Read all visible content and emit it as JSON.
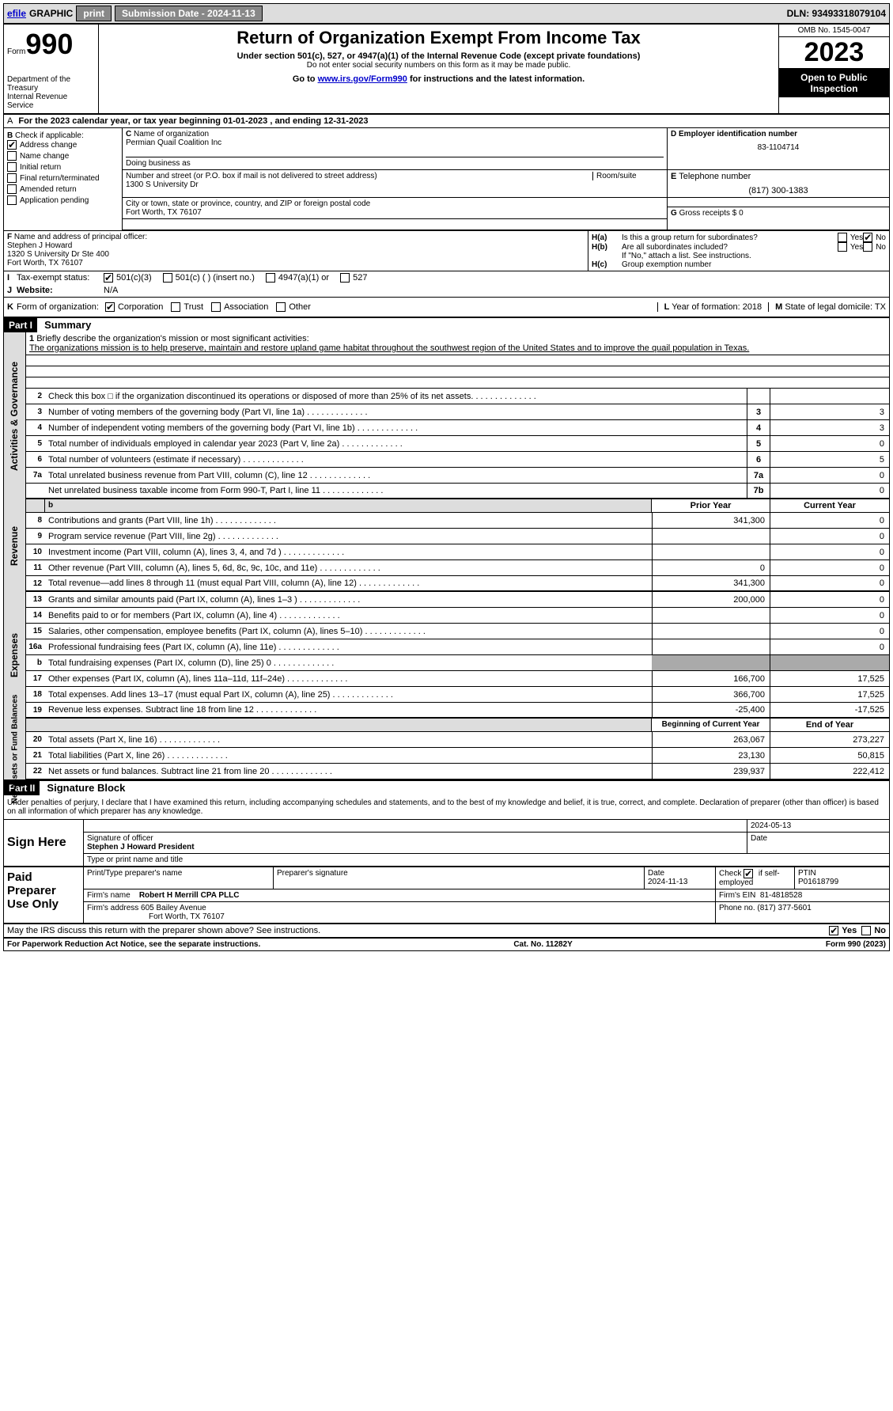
{
  "topbar": {
    "efile_label": "efile",
    "graphic_label": "GRAPHIC",
    "print_label": "print",
    "submission_label": "Submission Date - 2024-11-13",
    "dln_label": "DLN: 93493318079104"
  },
  "header": {
    "form_label": "Form",
    "form_number": "990",
    "title": "Return of Organization Exempt From Income Tax",
    "subtitle": "Under section 501(c), 527, or 4947(a)(1) of the Internal Revenue Code (except private foundations)",
    "warning": "Do not enter social security numbers on this form as it may be made public.",
    "goto": "Go to ",
    "goto_link": "www.irs.gov/Form990",
    "goto_rest": " for instructions and the latest information.",
    "dept": "Department of the Treasury",
    "irs": "Internal Revenue Service",
    "omb": "OMB No. 1545-0047",
    "year": "2023",
    "public": "Open to Public Inspection"
  },
  "row_a": "For the 2023 calendar year, or tax year beginning 01-01-2023    , and ending 12-31-2023",
  "row_a_prefix": "A",
  "col_b": {
    "label": "Check if applicable:",
    "prefix": "B",
    "items": [
      "Address change",
      "Name change",
      "Initial return",
      "Final return/terminated",
      "Amended return",
      "Application pending"
    ],
    "checked_idx": 0
  },
  "org": {
    "name_label": "Name of organization",
    "prefix": "C",
    "name": "Permian Quail Coalition Inc",
    "dba_label": "Doing business as",
    "dba": "",
    "street_label": "Number and street (or P.O. box if mail is not delivered to street address)",
    "room_label": "Room/suite",
    "street": "1300 S University Dr",
    "city_label": "City or town, state or province, country, and ZIP or foreign postal code",
    "city": "Fort Worth, TX  76107"
  },
  "ein": {
    "label": "Employer identification number",
    "prefix": "D",
    "value": "83-1104714"
  },
  "tel": {
    "label": "Telephone number",
    "prefix": "E",
    "value": "(817) 300-1383"
  },
  "gross": {
    "label": "Gross receipts $ 0",
    "prefix": "G"
  },
  "officer": {
    "label": "Name and address of principal officer:",
    "prefix": "F",
    "name": "Stephen J Howard",
    "street": "1320 S University Dr Ste 400",
    "city": "Fort Worth, TX  76107"
  },
  "h": {
    "a_label": "Is this a group return for subordinates?",
    "a_prefix": "H(a)",
    "a_yes": false,
    "a_no": true,
    "b_label": "Are all subordinates included?",
    "b_prefix": "H(b)",
    "b_note": "If \"No,\" attach a list. See instructions.",
    "c_label": "Group exemption number",
    "c_prefix": "H(c)",
    "c_value": ""
  },
  "tax_status": {
    "label": "Tax-exempt status:",
    "prefix": "I",
    "opt1": "501(c)(3)",
    "opt2": "501(c) (  ) (insert no.)",
    "opt3": "4947(a)(1) or",
    "opt4": "527",
    "checked": 0
  },
  "website": {
    "label": "Website:",
    "prefix": "J",
    "value": "N/A"
  },
  "form_org": {
    "label": "Form of organization:",
    "prefix": "K",
    "opts": [
      "Corporation",
      "Trust",
      "Association",
      "Other"
    ],
    "checked": 0
  },
  "year_form": {
    "label": "Year of formation: 2018",
    "prefix": "L"
  },
  "domicile": {
    "label": "State of legal domicile: TX",
    "prefix": "M"
  },
  "part1": {
    "label": "Part I",
    "title": "Summary"
  },
  "mission": {
    "num": "1",
    "label": "Briefly describe the organization's mission or most significant activities:",
    "text": "The organizations mission is to help preserve, maintain and restore upland game habitat throughout the southwest region of the United States and to improve the quail population in Texas."
  },
  "activities_label": "Activities & Governance",
  "gov_lines": [
    {
      "n": "2",
      "desc": "Check this box □ if the organization discontinued its operations or disposed of more than 25% of its net assets.",
      "nc": "",
      "v": ""
    },
    {
      "n": "3",
      "desc": "Number of voting members of the governing body (Part VI, line 1a)",
      "nc": "3",
      "v": "3"
    },
    {
      "n": "4",
      "desc": "Number of independent voting members of the governing body (Part VI, line 1b)",
      "nc": "4",
      "v": "3"
    },
    {
      "n": "5",
      "desc": "Total number of individuals employed in calendar year 2023 (Part V, line 2a)",
      "nc": "5",
      "v": "0"
    },
    {
      "n": "6",
      "desc": "Total number of volunteers (estimate if necessary)",
      "nc": "6",
      "v": "5"
    },
    {
      "n": "7a",
      "desc": "Total unrelated business revenue from Part VIII, column (C), line 12",
      "nc": "7a",
      "v": "0"
    },
    {
      "n": "",
      "desc": "Net unrelated business taxable income from Form 990-T, Part I, line 11",
      "nc": "7b",
      "v": "0"
    }
  ],
  "revenue_label": "Revenue",
  "rev_header": {
    "c1": "Prior Year",
    "c2": "Current Year"
  },
  "rev_header_b": {
    "c1": "b"
  },
  "rev_lines": [
    {
      "n": "8",
      "desc": "Contributions and grants (Part VIII, line 1h)",
      "v1": "341,300",
      "v2": "0"
    },
    {
      "n": "9",
      "desc": "Program service revenue (Part VIII, line 2g)",
      "v1": "",
      "v2": "0"
    },
    {
      "n": "10",
      "desc": "Investment income (Part VIII, column (A), lines 3, 4, and 7d )",
      "v1": "",
      "v2": "0"
    },
    {
      "n": "11",
      "desc": "Other revenue (Part VIII, column (A), lines 5, 6d, 8c, 9c, 10c, and 11e)",
      "v1": "0",
      "v2": "0"
    },
    {
      "n": "12",
      "desc": "Total revenue—add lines 8 through 11 (must equal Part VIII, column (A), line 12)",
      "v1": "341,300",
      "v2": "0"
    }
  ],
  "expenses_label": "Expenses",
  "exp_lines": [
    {
      "n": "13",
      "desc": "Grants and similar amounts paid (Part IX, column (A), lines 1–3 )",
      "v1": "200,000",
      "v2": "0"
    },
    {
      "n": "14",
      "desc": "Benefits paid to or for members (Part IX, column (A), line 4)",
      "v1": "",
      "v2": "0"
    },
    {
      "n": "15",
      "desc": "Salaries, other compensation, employee benefits (Part IX, column (A), lines 5–10)",
      "v1": "",
      "v2": "0"
    },
    {
      "n": "16a",
      "desc": "Professional fundraising fees (Part IX, column (A), line 11e)",
      "v1": "",
      "v2": "0"
    },
    {
      "n": "b",
      "desc": "Total fundraising expenses (Part IX, column (D), line 25) 0",
      "v1": "",
      "v2": "",
      "shade": true
    },
    {
      "n": "17",
      "desc": "Other expenses (Part IX, column (A), lines 11a–11d, 11f–24e)",
      "v1": "166,700",
      "v2": "17,525"
    },
    {
      "n": "18",
      "desc": "Total expenses. Add lines 13–17 (must equal Part IX, column (A), line 25)",
      "v1": "366,700",
      "v2": "17,525"
    },
    {
      "n": "19",
      "desc": "Revenue less expenses. Subtract line 18 from line 12",
      "v1": "-25,400",
      "v2": "-17,525"
    }
  ],
  "net_label": "Net Assets or Fund Balances",
  "net_header": {
    "c1": "Beginning of Current Year",
    "c2": "End of Year"
  },
  "net_lines": [
    {
      "n": "20",
      "desc": "Total assets (Part X, line 16)",
      "v1": "263,067",
      "v2": "273,227"
    },
    {
      "n": "21",
      "desc": "Total liabilities (Part X, line 26)",
      "v1": "23,130",
      "v2": "50,815"
    },
    {
      "n": "22",
      "desc": "Net assets or fund balances. Subtract line 21 from line 20",
      "v1": "239,937",
      "v2": "222,412"
    }
  ],
  "part2": {
    "label": "Part II",
    "title": "Signature Block"
  },
  "sig_text": "Under penalties of perjury, I declare that I have examined this return, including accompanying schedules and statements, and to the best of my knowledge and belief, it is true, correct, and complete. Declaration of preparer (other than officer) is based on all information of which preparer has any knowledge.",
  "sign": {
    "label": "Sign Here",
    "sig_label": "Signature of officer",
    "date_label": "Date",
    "date_value": "2024-05-13",
    "name": "Stephen J Howard President",
    "type_label": "Type or print name and title"
  },
  "paid": {
    "label": "Paid Preparer Use Only",
    "prep_name_label": "Print/Type preparer's name",
    "prep_sig_label": "Preparer's signature",
    "date_label": "Date",
    "date_value": "2024-11-13",
    "check_label": "Check",
    "check_if": "if self-employed",
    "checked": true,
    "ptin_label": "PTIN",
    "ptin_value": "P01618799",
    "firm_name_label": "Firm's name",
    "firm_name": "Robert H Merrill CPA PLLC",
    "firm_ein_label": "Firm's EIN",
    "firm_ein": "81-4818528",
    "firm_addr_label": "Firm's address",
    "firm_addr": "605 Bailey Avenue",
    "firm_city": "Fort Worth, TX  76107",
    "phone_label": "Phone no.",
    "phone": "(817) 377-5601"
  },
  "discuss": {
    "label": "May the IRS discuss this return with the preparer shown above? See instructions.",
    "yes": true,
    "no": false
  },
  "footer": {
    "left": "For Paperwork Reduction Act Notice, see the separate instructions.",
    "mid": "Cat. No. 11282Y",
    "right": "Form 990 (2023)"
  },
  "yes_label": "Yes",
  "no_label": "No"
}
